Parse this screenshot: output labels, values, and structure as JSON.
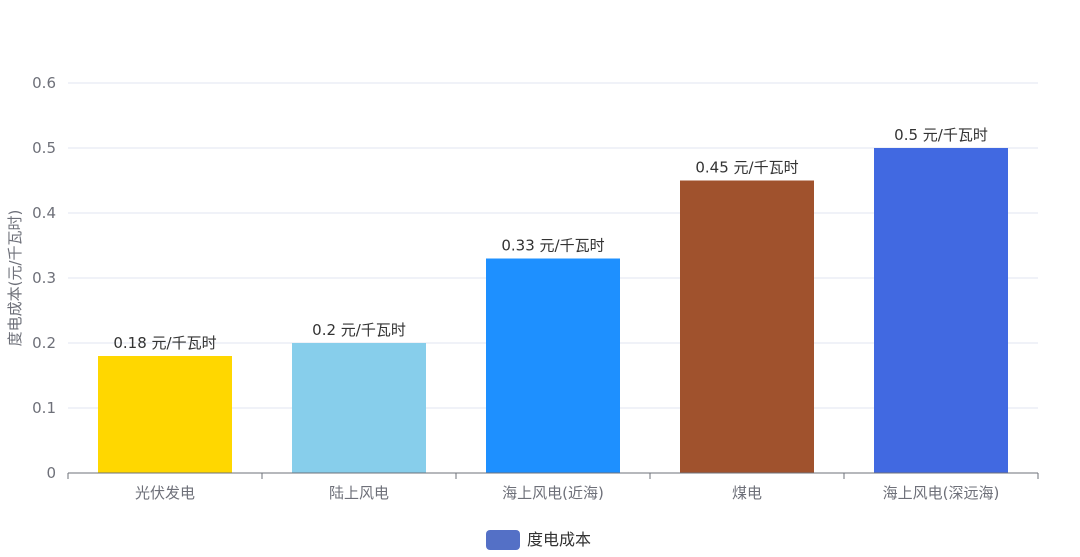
{
  "chart_data": {
    "type": "bar",
    "categories": [
      "光伏发电",
      "陆上风电",
      "海上风电(近海)",
      "煤电",
      "海上风电(深远海)"
    ],
    "values": [
      0.18,
      0.2,
      0.33,
      0.45,
      0.5
    ],
    "unit_suffix": " 元/千瓦时",
    "bar_colors": [
      "#FFD700",
      "#87CEEB",
      "#1E90FF",
      "#A0522D",
      "#4169E1"
    ],
    "ylabel": "度电成本(元/千瓦时)",
    "xlabel": "",
    "ylim": [
      0,
      0.6
    ],
    "yticks": [
      "0",
      "0.1",
      "0.2",
      "0.3",
      "0.4",
      "0.5",
      "0.6"
    ],
    "grid": true,
    "legend": {
      "position": "bottom-center",
      "entries": [
        {
          "name": "度电成本",
          "color": "#5470c6"
        }
      ]
    }
  }
}
